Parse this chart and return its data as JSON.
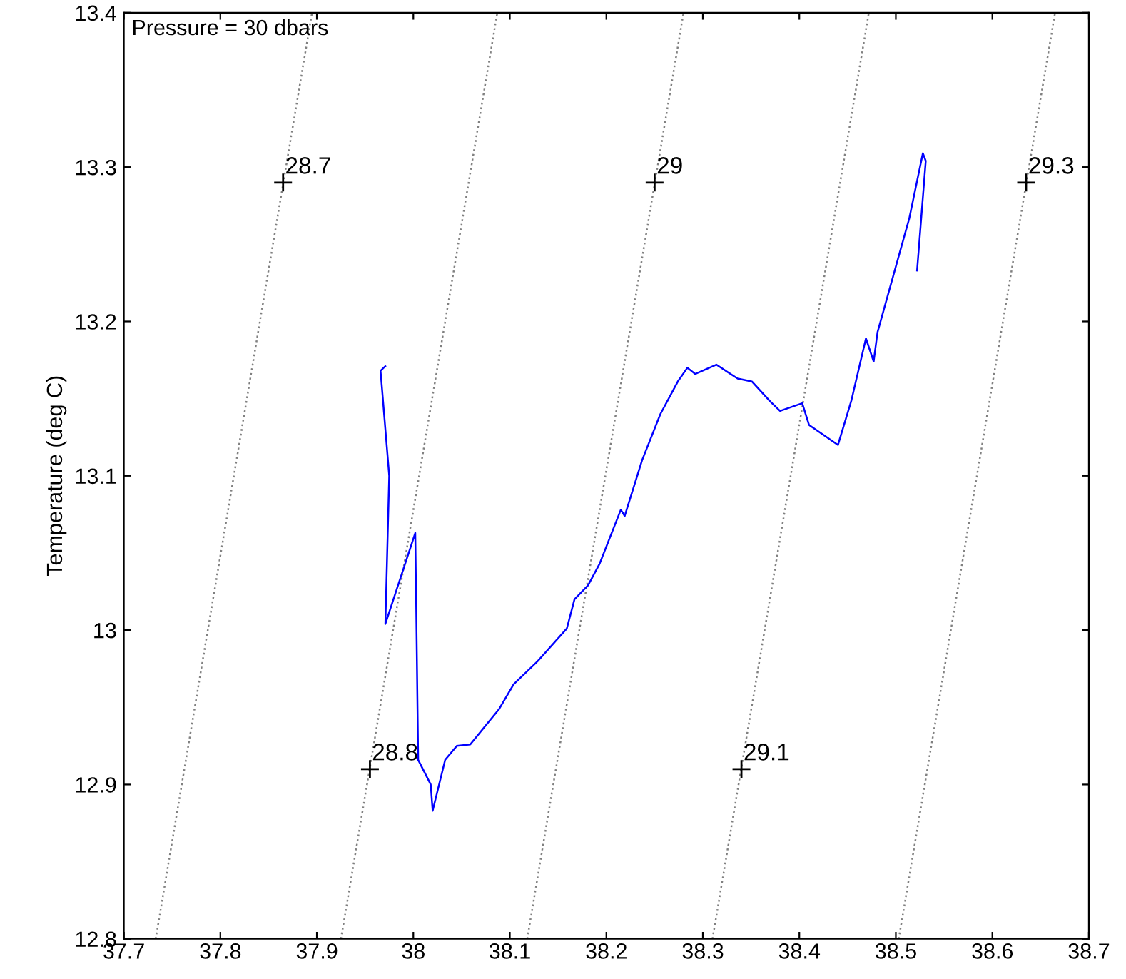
{
  "chart_data": {
    "type": "line",
    "ylabel": "Temperature (deg C)",
    "xlim": [
      37.7,
      38.7
    ],
    "ylim": [
      12.8,
      13.4
    ],
    "xticks": [
      37.7,
      37.8,
      37.9,
      38,
      38.1,
      38.2,
      38.3,
      38.4,
      38.5,
      38.6,
      38.7
    ],
    "yticks": [
      12.8,
      12.9,
      13,
      13.1,
      13.2,
      13.3,
      13.4
    ],
    "grid": false,
    "series": [
      {
        "color": "#808080",
        "line_style": "dotted",
        "x": [
          37.733,
          37.895
        ],
        "values": [
          12.8,
          13.4
        ]
      },
      {
        "color": "#808080",
        "line_style": "dotted",
        "x": [
          37.925,
          38.087
        ],
        "values": [
          12.8,
          13.4
        ]
      },
      {
        "color": "#808080",
        "line_style": "dotted",
        "x": [
          38.118,
          38.28
        ],
        "values": [
          12.8,
          13.4
        ]
      },
      {
        "color": "#808080",
        "line_style": "dotted",
        "x": [
          38.31,
          38.472
        ],
        "values": [
          12.8,
          13.4
        ]
      },
      {
        "color": "#808080",
        "line_style": "dotted",
        "x": [
          38.503,
          38.665
        ],
        "values": [
          12.8,
          13.4
        ]
      },
      {
        "color": "#0000ff",
        "line_style": "solid",
        "x": [
          37.971,
          37.966,
          37.975,
          37.971,
          38.002,
          38.005,
          38.018,
          38.02,
          38.033,
          38.045,
          38.059,
          38.089,
          38.104,
          38.129,
          38.159,
          38.167,
          38.181,
          38.193,
          38.215,
          38.219,
          38.237,
          38.256,
          38.274,
          38.284,
          38.292,
          38.314,
          38.336,
          38.351,
          38.37,
          38.38,
          38.403,
          38.41,
          38.44,
          38.454,
          38.469,
          38.477,
          38.481,
          38.514,
          38.528,
          38.531,
          38.522
        ],
        "values": [
          13.171,
          13.168,
          13.1,
          13.004,
          13.063,
          12.916,
          12.9,
          12.883,
          12.916,
          12.925,
          12.926,
          12.949,
          12.965,
          12.98,
          13.001,
          13.02,
          13.029,
          13.043,
          13.078,
          13.074,
          13.11,
          13.14,
          13.161,
          13.17,
          13.166,
          13.172,
          13.163,
          13.161,
          13.148,
          13.142,
          13.147,
          13.133,
          13.12,
          13.149,
          13.189,
          13.174,
          13.193,
          13.267,
          13.309,
          13.304,
          13.233
        ]
      }
    ],
    "annotations": [
      "Pressure = 30 dbars",
      {
        "text": "28.7",
        "x": 37.865,
        "y": 13.29
      },
      {
        "text": "29",
        "x": 38.25,
        "y": 13.29
      },
      {
        "text": "29.3",
        "x": 38.635,
        "y": 13.29
      },
      {
        "text": "28.8",
        "x": 37.955,
        "y": 12.91
      },
      {
        "text": "29.1",
        "x": 38.34,
        "y": 12.91
      }
    ]
  }
}
